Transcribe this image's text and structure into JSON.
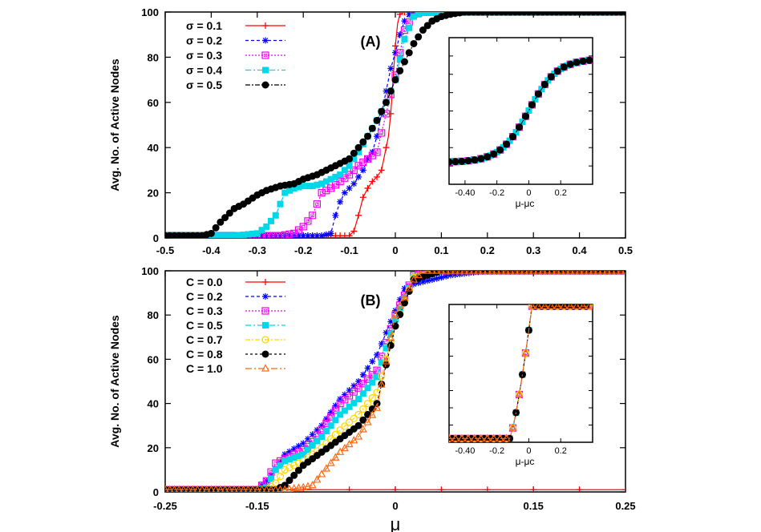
{
  "chart_data": [
    {
      "type": "line",
      "panel_label": "(A)",
      "ylabel": "Avg. No. of Active Nodes",
      "xlabel": "",
      "xlim": [
        -0.5,
        0.5
      ],
      "ylim": [
        0,
        100
      ],
      "x_ticks": [
        "-0.5",
        "-0.4",
        "-0.3",
        "-0.2",
        "-0.1",
        "0",
        "0.1",
        "0.2",
        "0.3",
        "0.4",
        "0.5"
      ],
      "y_ticks": [
        "0",
        "20",
        "40",
        "60",
        "80",
        "100"
      ],
      "legend_position": "top-left",
      "series": [
        {
          "name": "σ = 0.1",
          "color": "#ff0000",
          "marker": "plus",
          "x": [
            -0.5,
            -0.3,
            -0.15,
            -0.1,
            -0.09,
            -0.08,
            -0.07,
            -0.06,
            -0.05,
            -0.04,
            -0.03,
            -0.02,
            -0.015,
            -0.01,
            -0.005,
            0,
            0.005,
            0.01,
            0.02,
            0.03,
            0.05,
            0.1,
            0.5
          ],
          "y": [
            1,
            1,
            1,
            1,
            3,
            10,
            18,
            22,
            25,
            27,
            30,
            40,
            45,
            55,
            70,
            85,
            95,
            99,
            100,
            100,
            100,
            100,
            100
          ]
        },
        {
          "name": "σ = 0.2",
          "color": "#0000ff",
          "marker": "star",
          "x": [
            -0.5,
            -0.4,
            -0.3,
            -0.2,
            -0.16,
            -0.14,
            -0.13,
            -0.12,
            -0.11,
            -0.1,
            -0.09,
            -0.08,
            -0.07,
            -0.06,
            -0.05,
            -0.04,
            -0.03,
            -0.02,
            -0.01,
            0,
            0.01,
            0.02,
            0.03,
            0.05,
            0.1,
            0.5
          ],
          "y": [
            1,
            1,
            1,
            1,
            1,
            2,
            10,
            16,
            20,
            22,
            24,
            27,
            30,
            35,
            38,
            45,
            55,
            65,
            75,
            82,
            90,
            96,
            99,
            100,
            100,
            100
          ]
        },
        {
          "name": "σ = 0.3",
          "color": "#ee00ee",
          "marker": "square-open",
          "x": [
            -0.5,
            -0.4,
            -0.3,
            -0.25,
            -0.22,
            -0.2,
            -0.18,
            -0.16,
            -0.14,
            -0.12,
            -0.1,
            -0.08,
            -0.06,
            -0.04,
            -0.02,
            0,
            0.02,
            0.04,
            0.06,
            0.1,
            0.5
          ],
          "y": [
            1,
            1,
            1,
            1,
            2,
            5,
            10,
            20,
            22,
            25,
            28,
            32,
            35,
            38,
            55,
            72,
            92,
            99,
            100,
            100,
            100
          ]
        },
        {
          "name": "σ = 0.4",
          "color": "#00d8e8",
          "marker": "square-filled",
          "x": [
            -0.5,
            -0.4,
            -0.35,
            -0.3,
            -0.28,
            -0.26,
            -0.24,
            -0.22,
            -0.2,
            -0.18,
            -0.16,
            -0.14,
            -0.12,
            -0.1,
            -0.08,
            -0.06,
            -0.04,
            -0.02,
            0,
            0.02,
            0.04,
            0.06,
            0.1,
            0.5
          ],
          "y": [
            1,
            1,
            1,
            2,
            5,
            10,
            20,
            22,
            23,
            23,
            24,
            26,
            28,
            32,
            38,
            45,
            52,
            60,
            70,
            88,
            98,
            100,
            100,
            100
          ]
        },
        {
          "name": "σ = 0.5",
          "color": "#000000",
          "marker": "circle-filled",
          "x": [
            -0.5,
            -0.45,
            -0.42,
            -0.4,
            -0.38,
            -0.35,
            -0.33,
            -0.3,
            -0.28,
            -0.25,
            -0.22,
            -0.2,
            -0.17,
            -0.15,
            -0.12,
            -0.1,
            -0.08,
            -0.06,
            -0.04,
            -0.02,
            0,
            0.02,
            0.04,
            0.06,
            0.08,
            0.1,
            0.12,
            0.15,
            0.5
          ],
          "y": [
            1,
            1,
            1,
            2,
            7,
            13,
            15,
            19,
            21,
            23,
            24,
            26,
            28,
            30,
            33,
            35,
            40,
            45,
            52,
            60,
            70,
            78,
            86,
            92,
            96,
            98,
            99,
            100,
            100
          ]
        }
      ],
      "inset": {
        "x_ticks": [
          "-0.40",
          "-0.2",
          "0",
          "0.2"
        ],
        "xlabel": "μ-μc"
      }
    },
    {
      "type": "line",
      "panel_label": "(B)",
      "ylabel": "Avg. No. of Active Nodes",
      "xlabel": "μ",
      "xlim": [
        -0.25,
        0.25
      ],
      "ylim": [
        0,
        100
      ],
      "x_ticks": [
        "-0.25",
        "-0.15",
        "0",
        "0.15",
        "0.25"
      ],
      "y_ticks": [
        "0",
        "20",
        "40",
        "60",
        "80",
        "100"
      ],
      "legend_position": "top-left",
      "series": [
        {
          "name": "C = 0.0",
          "color": "#ff0000",
          "marker": "plus",
          "x": [
            -0.25,
            -0.15,
            0,
            0.1,
            0.2,
            0.25
          ],
          "y": [
            1,
            1,
            1,
            1,
            1,
            1
          ]
        },
        {
          "name": "C = 0.2",
          "color": "#0000ff",
          "marker": "star",
          "x": [
            -0.25,
            -0.15,
            -0.14,
            -0.13,
            -0.12,
            -0.1,
            -0.08,
            -0.06,
            -0.04,
            -0.02,
            0,
            0.01,
            0.02,
            0.04,
            0.06,
            0.08,
            0.1,
            0.25
          ],
          "y": [
            1,
            1,
            5,
            10,
            17,
            22,
            30,
            42,
            50,
            62,
            82,
            92,
            94,
            96,
            98,
            99,
            100,
            100
          ]
        },
        {
          "name": "C = 0.3",
          "color": "#ee00ee",
          "marker": "square-open",
          "x": [
            -0.25,
            -0.15,
            -0.14,
            -0.13,
            -0.12,
            -0.1,
            -0.08,
            -0.06,
            -0.04,
            -0.02,
            0,
            0.02,
            0.05,
            0.25
          ],
          "y": [
            1,
            1,
            5,
            13,
            15,
            19,
            28,
            40,
            47,
            55,
            80,
            98,
            100,
            100
          ]
        },
        {
          "name": "C = 0.5",
          "color": "#00d8e8",
          "marker": "square-filled",
          "x": [
            -0.25,
            -0.15,
            -0.14,
            -0.13,
            -0.12,
            -0.1,
            -0.08,
            -0.06,
            -0.04,
            -0.02,
            0,
            0.02,
            0.05,
            0.25
          ],
          "y": [
            1,
            1,
            2,
            10,
            14,
            17,
            25,
            35,
            42,
            52,
            78,
            97,
            100,
            100
          ]
        },
        {
          "name": "C = 0.7",
          "color": "#ffd700",
          "marker": "circle-open",
          "x": [
            -0.25,
            -0.15,
            -0.14,
            -0.13,
            -0.12,
            -0.1,
            -0.08,
            -0.06,
            -0.04,
            -0.02,
            0,
            0.02,
            0.05,
            0.25
          ],
          "y": [
            1,
            1,
            1,
            4,
            10,
            14,
            20,
            28,
            35,
            45,
            75,
            97,
            100,
            100
          ]
        },
        {
          "name": "C = 0.8",
          "color": "#000000",
          "marker": "circle-filled",
          "x": [
            -0.25,
            -0.15,
            -0.14,
            -0.13,
            -0.12,
            -0.1,
            -0.08,
            -0.06,
            -0.04,
            -0.02,
            0,
            0.02,
            0.05,
            0.25
          ],
          "y": [
            1,
            1,
            1,
            1,
            3,
            12,
            18,
            24,
            30,
            40,
            75,
            96,
            100,
            100
          ]
        },
        {
          "name": "C = 1.0",
          "color": "#ff6a10",
          "marker": "triangle-open",
          "x": [
            -0.25,
            -0.15,
            -0.12,
            -0.1,
            -0.09,
            -0.08,
            -0.06,
            -0.04,
            -0.02,
            0,
            0.02,
            0.03,
            0.05,
            0.1,
            0.15,
            0.2,
            0.25
          ],
          "y": [
            1,
            1,
            1,
            2,
            3,
            8,
            18,
            25,
            38,
            80,
            96,
            100,
            100,
            100,
            100,
            100,
            100
          ]
        }
      ],
      "inset": {
        "x_ticks": [
          "-0.40",
          "-0.2",
          "0",
          "0.2"
        ],
        "xlabel": "μ-μc"
      }
    }
  ]
}
